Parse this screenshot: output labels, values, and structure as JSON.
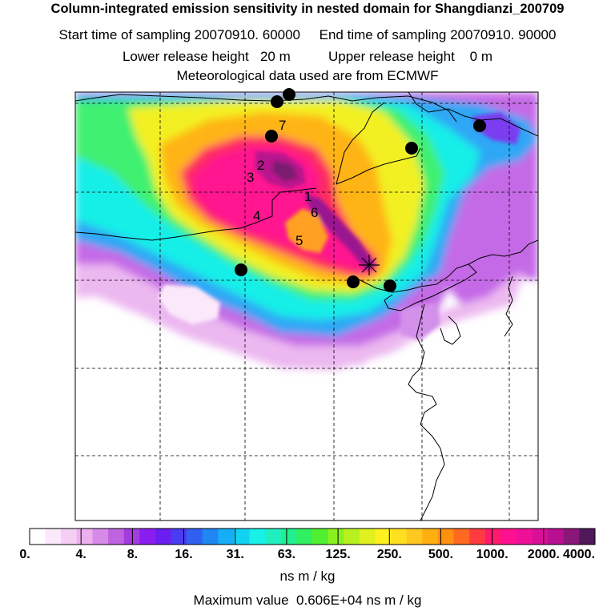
{
  "header": {
    "title": "Column-integrated emission sensitivity in nested domain for Shangdianzi_200709",
    "line2": "Start time of sampling 20070910. 60000     End time of sampling 20070910. 90000",
    "line3": "Lower release height   20 m          Upper release height    0 m",
    "line4": "Meteorological data used are from ECMWF"
  },
  "colorbar": {
    "labels": [
      "0.",
      "4.",
      "8.",
      "16.",
      "31.",
      "63.",
      "125.",
      "250.",
      "500.",
      "1000.",
      "2000.",
      "4000."
    ],
    "colors": [
      "#ffffff",
      "#fbe8fb",
      "#f5cef5",
      "#edb0ef",
      "#d88ae8",
      "#bf63e0",
      "#a43ce0",
      "#8a1ef0",
      "#6a1ff0",
      "#4a3cf0",
      "#3060f0",
      "#1f86f4",
      "#16aef8",
      "#12d2f4",
      "#18f0e8",
      "#20f0c0",
      "#20f090",
      "#30f060",
      "#50f030",
      "#8af020",
      "#b8f020",
      "#e0f020",
      "#fff020",
      "#ffe020",
      "#ffc820",
      "#ffb010",
      "#ff9010",
      "#ff6a20",
      "#ff3a40",
      "#ff1a70",
      "#ff1090",
      "#f01098",
      "#d81098",
      "#b81090",
      "#8a1878",
      "#501a5a"
    ],
    "units": "ns m / kg"
  },
  "footer": {
    "max_value": "Maximum value  0.606E+04 ns m / kg"
  },
  "map": {
    "station_labels": [
      "1",
      "2",
      "3",
      "4",
      "5",
      "6",
      "7"
    ],
    "marker_count": 9
  }
}
